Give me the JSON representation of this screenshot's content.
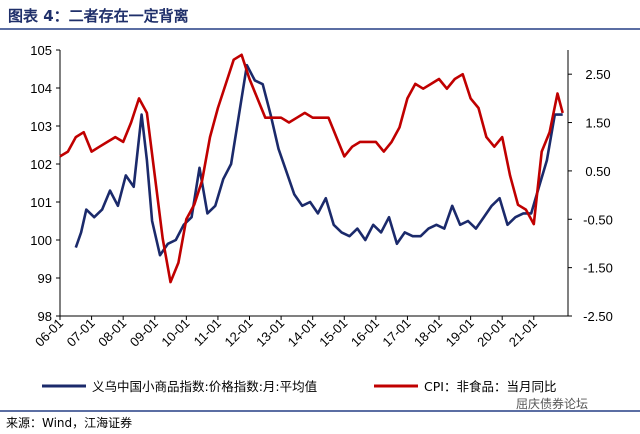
{
  "header": {
    "title": "图表 4：二者存在一定背离"
  },
  "footer": {
    "source": "来源：Wind，江海证券",
    "watermark": "屈庆债券论坛"
  },
  "chart_data": {
    "type": "line",
    "x_tick_labels": [
      "06-01",
      "07-01",
      "08-01",
      "09-01",
      "10-01",
      "11-01",
      "12-01",
      "13-01",
      "14-01",
      "15-01",
      "16-01",
      "17-01",
      "18-01",
      "19-01",
      "20-01",
      "21-01"
    ],
    "xlim": [
      "2006-01",
      "2022-02"
    ],
    "left_axis": {
      "ylim": [
        98,
        105
      ],
      "ticks": [
        "98",
        "99",
        "100",
        "101",
        "102",
        "103",
        "104",
        "105"
      ]
    },
    "right_axis": {
      "ylim": [
        -2.5,
        3.0
      ],
      "ticks": [
        "-2.50",
        "-1.50",
        "-0.50",
        "0.50",
        "1.50",
        "2.50"
      ]
    },
    "series": [
      {
        "name": "义乌中国小商品指数:价格指数:月:平均值",
        "axis": "left",
        "color": "#1b2a6b",
        "points": [
          [
            "2006-07",
            99.8
          ],
          [
            "2006-09",
            100.2
          ],
          [
            "2006-11",
            100.8
          ],
          [
            "2007-02",
            100.6
          ],
          [
            "2007-05",
            100.8
          ],
          [
            "2007-08",
            101.3
          ],
          [
            "2007-11",
            100.9
          ],
          [
            "2008-02",
            101.7
          ],
          [
            "2008-05",
            101.4
          ],
          [
            "2008-08",
            103.3
          ],
          [
            "2008-10",
            102.1
          ],
          [
            "2008-12",
            100.5
          ],
          [
            "2009-03",
            99.6
          ],
          [
            "2009-06",
            99.9
          ],
          [
            "2009-09",
            100.0
          ],
          [
            "2009-12",
            100.4
          ],
          [
            "2010-03",
            100.6
          ],
          [
            "2010-06",
            101.9
          ],
          [
            "2010-09",
            100.7
          ],
          [
            "2010-12",
            100.9
          ],
          [
            "2011-03",
            101.6
          ],
          [
            "2011-06",
            102.0
          ],
          [
            "2011-09",
            103.3
          ],
          [
            "2011-12",
            104.6
          ],
          [
            "2012-03",
            104.2
          ],
          [
            "2012-06",
            104.1
          ],
          [
            "2012-09",
            103.3
          ],
          [
            "2012-12",
            102.4
          ],
          [
            "2013-03",
            101.8
          ],
          [
            "2013-06",
            101.2
          ],
          [
            "2013-09",
            100.9
          ],
          [
            "2013-12",
            101.0
          ],
          [
            "2014-03",
            100.7
          ],
          [
            "2014-06",
            101.1
          ],
          [
            "2014-09",
            100.4
          ],
          [
            "2014-12",
            100.2
          ],
          [
            "2015-03",
            100.1
          ],
          [
            "2015-06",
            100.3
          ],
          [
            "2015-09",
            100.0
          ],
          [
            "2015-12",
            100.4
          ],
          [
            "2016-03",
            100.2
          ],
          [
            "2016-06",
            100.6
          ],
          [
            "2016-09",
            99.9
          ],
          [
            "2016-12",
            100.2
          ],
          [
            "2017-03",
            100.1
          ],
          [
            "2017-06",
            100.1
          ],
          [
            "2017-09",
            100.3
          ],
          [
            "2017-12",
            100.4
          ],
          [
            "2018-03",
            100.3
          ],
          [
            "2018-06",
            100.9
          ],
          [
            "2018-09",
            100.4
          ],
          [
            "2018-12",
            100.5
          ],
          [
            "2019-03",
            100.3
          ],
          [
            "2019-06",
            100.6
          ],
          [
            "2019-09",
            100.9
          ],
          [
            "2019-12",
            101.1
          ],
          [
            "2020-03",
            100.4
          ],
          [
            "2020-06",
            100.6
          ],
          [
            "2020-09",
            100.7
          ],
          [
            "2020-12",
            100.7
          ],
          [
            "2021-03",
            101.4
          ],
          [
            "2021-06",
            102.1
          ],
          [
            "2021-09",
            103.3
          ],
          [
            "2021-12",
            103.3
          ]
        ]
      },
      {
        "name": "CPI：非食品：当月同比",
        "axis": "right",
        "color": "#c00000",
        "points": [
          [
            "2006-01",
            0.8
          ],
          [
            "2006-04",
            0.9
          ],
          [
            "2006-07",
            1.2
          ],
          [
            "2006-10",
            1.3
          ],
          [
            "2007-01",
            0.9
          ],
          [
            "2007-04",
            1.0
          ],
          [
            "2007-07",
            1.1
          ],
          [
            "2007-10",
            1.2
          ],
          [
            "2008-01",
            1.1
          ],
          [
            "2008-04",
            1.5
          ],
          [
            "2008-07",
            2.0
          ],
          [
            "2008-10",
            1.7
          ],
          [
            "2009-01",
            0.4
          ],
          [
            "2009-04",
            -0.9
          ],
          [
            "2009-07",
            -1.8
          ],
          [
            "2009-10",
            -1.4
          ],
          [
            "2010-01",
            -0.5
          ],
          [
            "2010-04",
            -0.2
          ],
          [
            "2010-07",
            0.3
          ],
          [
            "2010-10",
            1.2
          ],
          [
            "2011-01",
            1.8
          ],
          [
            "2011-04",
            2.3
          ],
          [
            "2011-07",
            2.8
          ],
          [
            "2011-10",
            2.9
          ],
          [
            "2012-01",
            2.4
          ],
          [
            "2012-04",
            2.0
          ],
          [
            "2012-07",
            1.6
          ],
          [
            "2012-10",
            1.6
          ],
          [
            "2013-01",
            1.6
          ],
          [
            "2013-04",
            1.5
          ],
          [
            "2013-07",
            1.6
          ],
          [
            "2013-10",
            1.7
          ],
          [
            "2014-01",
            1.6
          ],
          [
            "2014-04",
            1.6
          ],
          [
            "2014-07",
            1.6
          ],
          [
            "2014-10",
            1.2
          ],
          [
            "2015-01",
            0.8
          ],
          [
            "2015-04",
            1.0
          ],
          [
            "2015-07",
            1.1
          ],
          [
            "2015-10",
            1.1
          ],
          [
            "2016-01",
            1.1
          ],
          [
            "2016-04",
            0.9
          ],
          [
            "2016-07",
            1.1
          ],
          [
            "2016-10",
            1.4
          ],
          [
            "2017-01",
            2.0
          ],
          [
            "2017-04",
            2.3
          ],
          [
            "2017-07",
            2.2
          ],
          [
            "2017-10",
            2.3
          ],
          [
            "2018-01",
            2.4
          ],
          [
            "2018-04",
            2.2
          ],
          [
            "2018-07",
            2.4
          ],
          [
            "2018-10",
            2.5
          ],
          [
            "2019-01",
            2.0
          ],
          [
            "2019-04",
            1.8
          ],
          [
            "2019-07",
            1.2
          ],
          [
            "2019-10",
            1.0
          ],
          [
            "2020-01",
            1.2
          ],
          [
            "2020-04",
            0.4
          ],
          [
            "2020-07",
            -0.2
          ],
          [
            "2020-10",
            -0.3
          ],
          [
            "2021-01",
            -0.6
          ],
          [
            "2021-04",
            0.9
          ],
          [
            "2021-07",
            1.3
          ],
          [
            "2021-10",
            2.1
          ],
          [
            "2021-12",
            1.7
          ]
        ]
      }
    ]
  }
}
